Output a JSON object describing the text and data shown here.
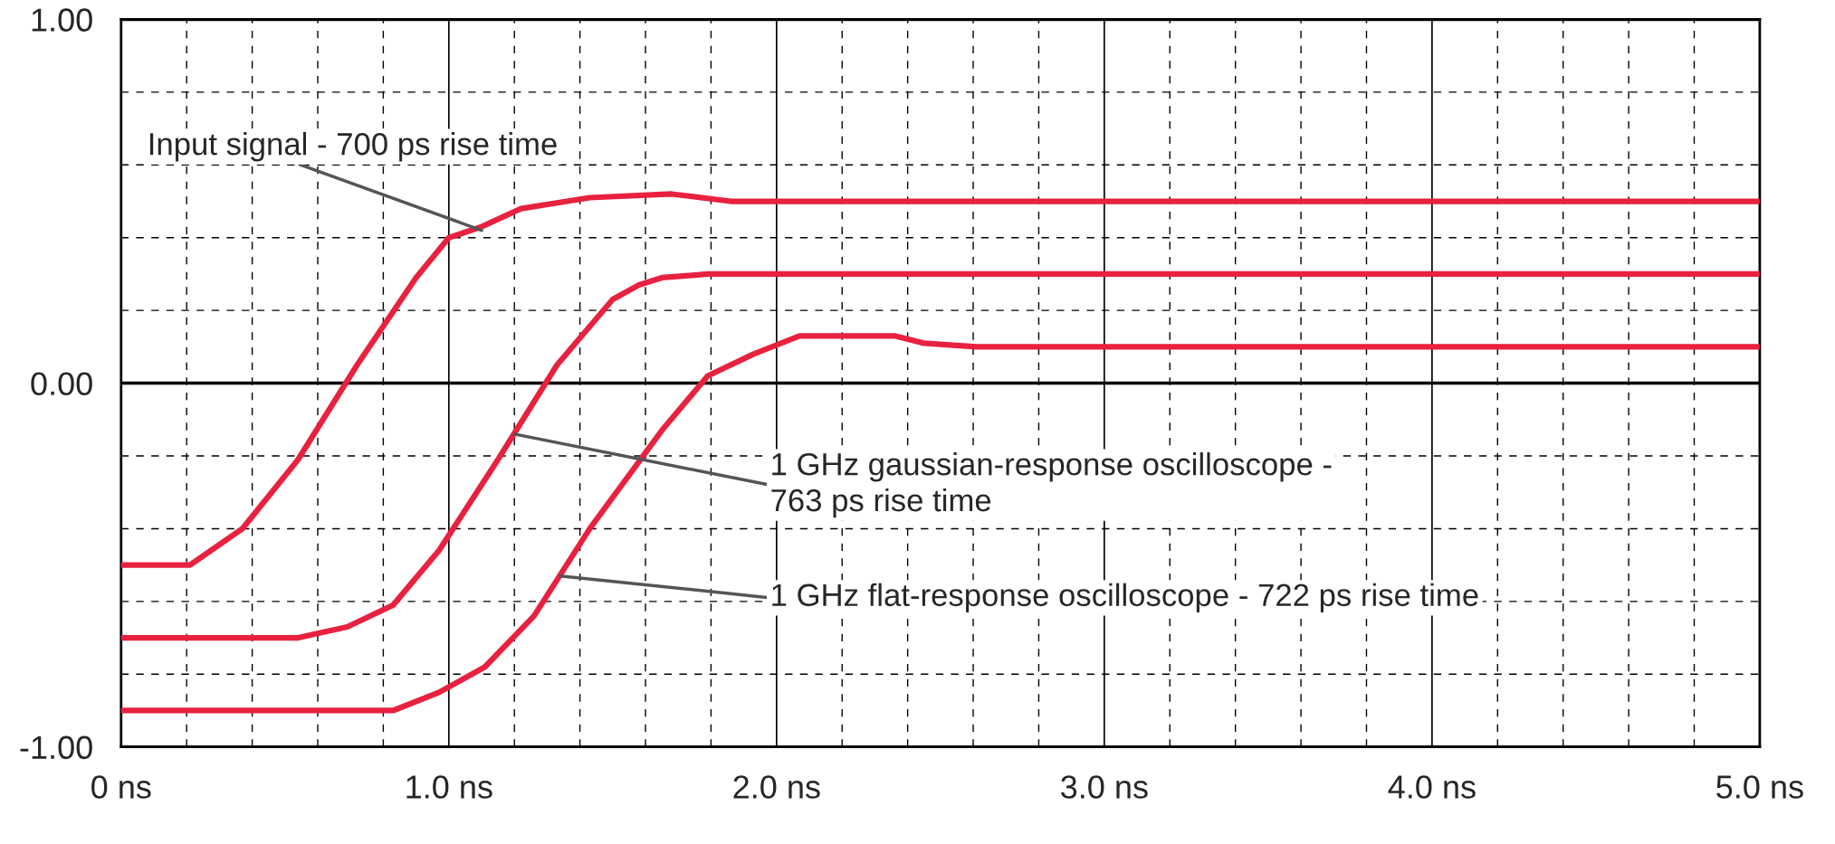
{
  "chart_data": {
    "type": "line",
    "xlim": [
      0,
      5
    ],
    "ylim": [
      -1,
      1
    ],
    "xticks": [
      {
        "value": 0,
        "label": "0 ns"
      },
      {
        "value": 1,
        "label": "1.0 ns"
      },
      {
        "value": 2,
        "label": "2.0 ns"
      },
      {
        "value": 3,
        "label": "3.0 ns"
      },
      {
        "value": 4,
        "label": "4.0 ns"
      },
      {
        "value": 5,
        "label": "5.0 ns"
      }
    ],
    "yticks": [
      {
        "value": -1,
        "label": "-1.00"
      },
      {
        "value": 0,
        "label": "0.00"
      },
      {
        "value": 1,
        "label": "1.00"
      }
    ],
    "grid": true,
    "legend": false,
    "marker": "none",
    "line_style": "solid",
    "series": [
      {
        "color": "#e8213f",
        "x": [
          0,
          0.21,
          0.37,
          0.54,
          0.72,
          0.9,
          1.0,
          1.1,
          1.22,
          1.43,
          1.68,
          1.86,
          2.0,
          5.0
        ],
        "values": [
          -0.5,
          -0.5,
          -0.4,
          -0.21,
          0.05,
          0.29,
          0.4,
          0.43,
          0.48,
          0.51,
          0.52,
          0.5,
          0.5,
          0.5
        ]
      },
      {
        "color": "#e8213f",
        "x": [
          0,
          0.54,
          0.69,
          0.83,
          0.97,
          1.15,
          1.33,
          1.5,
          1.58,
          1.65,
          1.79,
          1.97,
          2.0,
          5.0
        ],
        "values": [
          -0.7,
          -0.7,
          -0.67,
          -0.61,
          -0.46,
          -0.21,
          0.05,
          0.23,
          0.27,
          0.29,
          0.3,
          0.3,
          0.3,
          0.3
        ]
      },
      {
        "color": "#e8213f",
        "x": [
          0,
          0.83,
          0.97,
          1.11,
          1.26,
          1.43,
          1.65,
          1.79,
          1.93,
          2.07,
          2.22,
          2.36,
          2.45,
          2.61,
          5.0
        ],
        "values": [
          -0.9,
          -0.9,
          -0.85,
          -0.78,
          -0.64,
          -0.4,
          -0.13,
          0.02,
          0.08,
          0.13,
          0.13,
          0.13,
          0.11,
          0.1,
          0.1
        ]
      }
    ],
    "annotations": [
      {
        "text": "Input signal - 700 ps rise time",
        "x": 1.1,
        "y": 0.42
      },
      {
        "text": "1 GHz gaussian-response oscilloscope -\n763 ps rise time",
        "x": 1.2,
        "y": -0.14
      },
      {
        "text": "1 GHz flat-response oscilloscope - 722 ps rise time",
        "x": 1.34,
        "y": -0.53
      }
    ]
  }
}
